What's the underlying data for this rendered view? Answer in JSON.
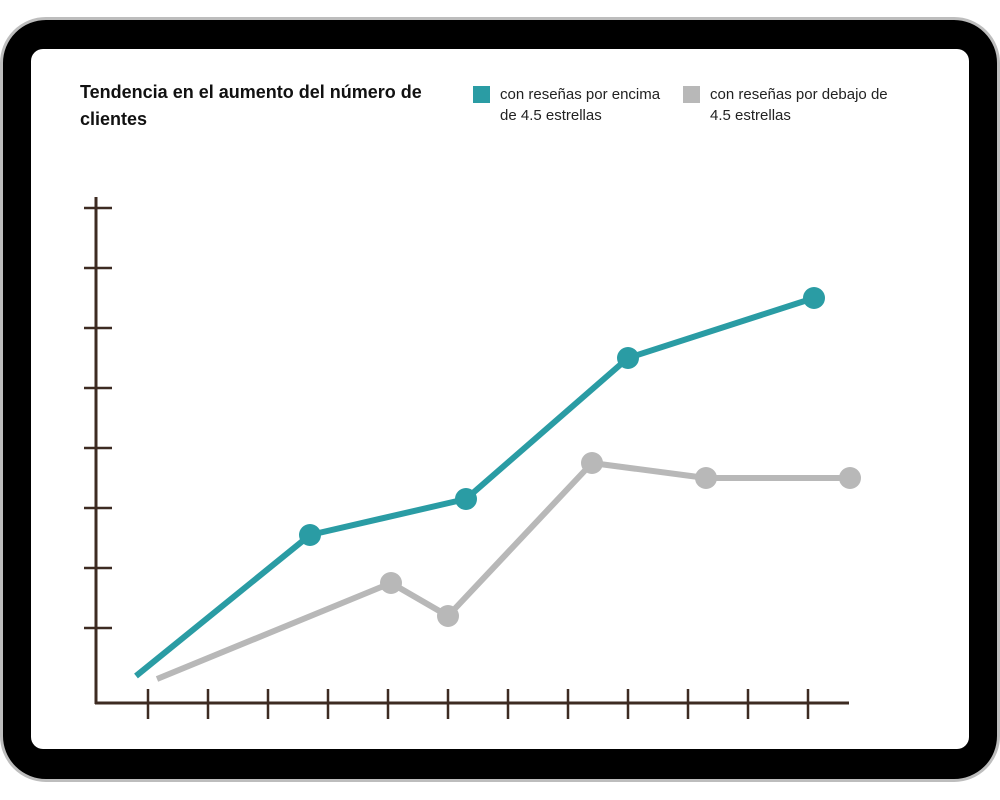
{
  "colors": {
    "series_above": "#2a9ca4",
    "series_below": "#b8b8b8",
    "axis": "#3d2b22",
    "frame": "#000000",
    "frame_edge": "#bdbdbd"
  },
  "chart_data": {
    "type": "line",
    "title": "Tendencia en el aumento del número de clientes",
    "xlabel": "",
    "ylabel": "",
    "x_ticks": 12,
    "y_ticks": 8,
    "xlim": [
      0,
      12.3
    ],
    "ylim": [
      0,
      8
    ],
    "grid": false,
    "legend": "top-right",
    "series": [
      {
        "name": "con reseñas por encima de 4.5 estrellas",
        "color": "#2a9ca4",
        "points": [
          {
            "x": -0.2,
            "y": 0.45,
            "marker": false
          },
          {
            "x": 2.7,
            "y": 2.8,
            "marker": true
          },
          {
            "x": 5.3,
            "y": 3.4,
            "marker": true
          },
          {
            "x": 8.0,
            "y": 5.75,
            "marker": true
          },
          {
            "x": 11.1,
            "y": 6.75,
            "marker": true
          }
        ]
      },
      {
        "name": "con reseñas por debajo de 4.5 estrellas",
        "color": "#b8b8b8",
        "points": [
          {
            "x": 0.15,
            "y": 0.4,
            "marker": false
          },
          {
            "x": 4.05,
            "y": 2.0,
            "marker": true
          },
          {
            "x": 5.0,
            "y": 1.45,
            "marker": true
          },
          {
            "x": 7.4,
            "y": 4.0,
            "marker": true
          },
          {
            "x": 9.3,
            "y": 3.75,
            "marker": true
          },
          {
            "x": 11.7,
            "y": 3.75,
            "marker": true
          }
        ]
      }
    ]
  }
}
